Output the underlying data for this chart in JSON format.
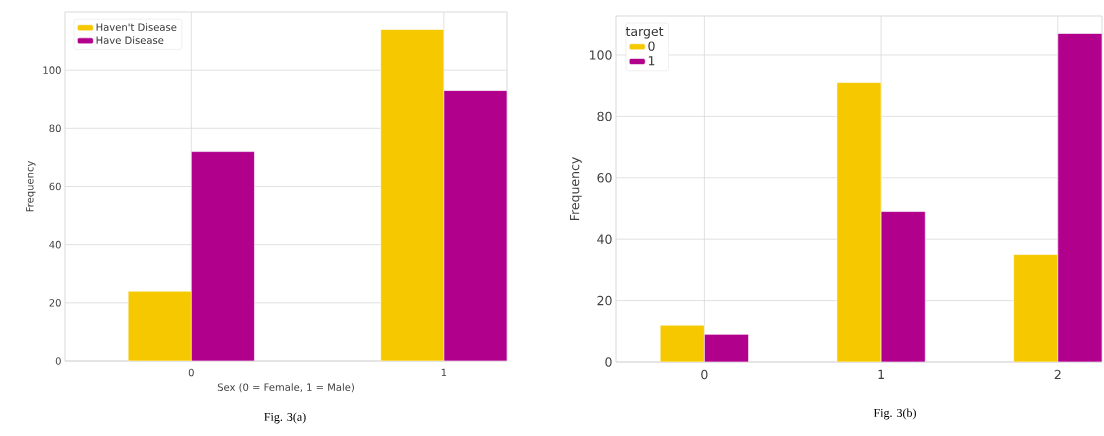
{
  "chart_data": [
    {
      "type": "bar",
      "categories": [
        "0",
        "1"
      ],
      "xlabel": "Sex (0 = Female, 1 = Male)",
      "ylabel": "Frequency",
      "series": [
        {
          "name": "Haven't Disease",
          "color": "#f5c800",
          "values": [
            24,
            114
          ]
        },
        {
          "name": "Have Disease",
          "color": "#b0008c",
          "values": [
            72,
            93
          ]
        }
      ],
      "ylim": [
        0,
        120
      ],
      "yticks": [
        0,
        20,
        40,
        60,
        80,
        100
      ],
      "grid": true,
      "legend": "top left",
      "annotations": [
        "Fig. 3(a)"
      ]
    },
    {
      "type": "bar",
      "categories": [
        "0",
        "1",
        "2"
      ],
      "ylabel": "Frequency",
      "legend_title": "target",
      "series": [
        {
          "name": "0",
          "color": "#f5c800",
          "values": [
            12,
            91,
            35
          ]
        },
        {
          "name": "1",
          "color": "#b0008c",
          "values": [
            9,
            49,
            107
          ]
        }
      ],
      "ylim": [
        0,
        112.7
      ],
      "yticks": [
        0,
        20,
        40,
        60,
        80,
        100
      ],
      "grid": true,
      "legend": "top left",
      "annotations": [
        "Fig. 3(b)"
      ]
    }
  ]
}
